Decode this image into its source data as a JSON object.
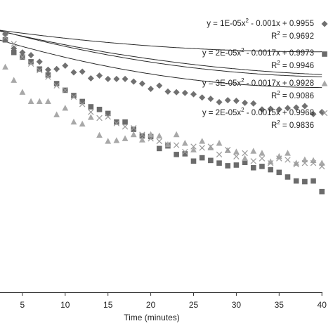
{
  "chart_data": {
    "type": "scatter",
    "xlabel": "Time (minutes)",
    "xlim": [
      2,
      40
    ],
    "ylim": [
      0.6,
      1.02
    ],
    "x_ticks": [
      5,
      10,
      15,
      20,
      25,
      30,
      35,
      40
    ],
    "legend_position": "top-right",
    "series": [
      {
        "equation": "y = 1E-05x",
        "equation_exp": "2",
        "equation_rest": " - 0.001x + 0.9955",
        "r2_label": "R",
        "r2_exp": "2",
        "r2_rest": " = 0.9692",
        "marker": "diamond",
        "color": "#707070",
        "fit": [
          1e-05,
          -0.001,
          0.9955
        ],
        "fit_display": [
          2.4e-05,
          -0.00188,
          0.9999
        ],
        "x": [
          2,
          3,
          4,
          5,
          6,
          7,
          8,
          9,
          10,
          11,
          12,
          13,
          14,
          15,
          16,
          17,
          18,
          19,
          20,
          21,
          22,
          23,
          24,
          25,
          26,
          27,
          28,
          29,
          30,
          31,
          32,
          33,
          34,
          35,
          36,
          37,
          38,
          39,
          40
        ],
        "y": [
          0.992,
          0.99,
          0.968,
          0.962,
          0.958,
          0.948,
          0.936,
          0.937,
          0.942,
          0.932,
          0.933,
          0.923,
          0.927,
          0.922,
          0.922,
          0.922,
          0.918,
          0.915,
          0.907,
          0.912,
          0.903,
          0.902,
          0.901,
          0.899,
          0.894,
          0.892,
          0.887,
          0.89,
          0.889,
          0.886,
          0.885,
          0.876,
          0.877,
          0.876,
          0.878,
          0.879,
          0.881,
          0.869,
          0.872
        ]
      },
      {
        "equation": "y = 2E-05x",
        "equation_exp": "2",
        "equation_rest": " - 0.0017x + 0.9973",
        "r2_label": "R",
        "r2_exp": "2",
        "r2_rest": " = 0.9946",
        "marker": "square",
        "color": "#6b6b6b",
        "fit": [
          2e-05,
          -0.0017,
          0.9973
        ],
        "fit_display": [
          3.25e-05,
          -0.00312,
          1.0015
        ],
        "x": [
          2,
          3,
          4,
          5,
          6,
          7,
          8,
          9,
          10,
          11,
          12,
          13,
          14,
          15,
          16,
          17,
          18,
          19,
          20,
          21,
          22,
          23,
          24,
          25,
          26,
          27,
          28,
          29,
          30,
          31,
          32,
          33,
          34,
          35,
          36,
          37,
          38,
          39,
          40
        ],
        "y": [
          0.985,
          0.981,
          0.962,
          0.955,
          0.948,
          0.937,
          0.928,
          0.915,
          0.905,
          0.897,
          0.888,
          0.88,
          0.876,
          0.87,
          0.857,
          0.857,
          0.846,
          0.836,
          0.835,
          0.817,
          0.821,
          0.808,
          0.809,
          0.798,
          0.803,
          0.799,
          0.795,
          0.791,
          0.792,
          0.796,
          0.788,
          0.79,
          0.785,
          0.781,
          0.774,
          0.768,
          0.767,
          0.768,
          0.752
        ]
      },
      {
        "equation": "y = 3E-05x",
        "equation_exp": "2",
        "equation_rest": " - 0.0017x + 0.9928",
        "r2_label": "R",
        "r2_exp": "2",
        "r2_rest": " = 0.9086",
        "marker": "triangle",
        "color": "#a8a8a8",
        "fit": [
          3e-05,
          -0.0017,
          0.9928
        ],
        "fit_display": [
          5e-05,
          -0.00402,
          0.9899
        ],
        "x": [
          2,
          3,
          4,
          5,
          6,
          7,
          8,
          9,
          10,
          11,
          12,
          13,
          14,
          15,
          16,
          17,
          18,
          19,
          20,
          21,
          22,
          23,
          24,
          25,
          26,
          27,
          28,
          29,
          30,
          31,
          32,
          33,
          34,
          35,
          36,
          37,
          38,
          39,
          40
        ],
        "y": [
          0.958,
          0.94,
          0.92,
          0.902,
          0.888,
          0.888,
          0.888,
          0.868,
          0.878,
          0.857,
          0.854,
          0.864,
          0.837,
          0.828,
          0.829,
          0.832,
          0.838,
          0.83,
          0.838,
          0.836,
          0.823,
          0.838,
          0.825,
          0.815,
          0.828,
          0.818,
          0.825,
          0.814,
          0.812,
          0.802,
          0.813,
          0.81,
          0.797,
          0.805,
          0.81,
          0.795,
          0.8,
          0.799,
          0.795
        ]
      },
      {
        "equation": "y = 2E-05x",
        "equation_exp": "2",
        "equation_rest": " - 0.0015x + 0.9968",
        "r2_label": "R",
        "r2_exp": "2",
        "r2_rest": " = 0.9836",
        "marker": "x",
        "color": "#9a9a9a",
        "fit": [
          2e-05,
          -0.0015,
          0.9968
        ],
        "fit_display": [
          4.2e-05,
          -0.00363,
          1.0033
        ],
        "x": [
          2,
          3,
          4,
          5,
          6,
          7,
          8,
          9,
          10,
          11,
          12,
          13,
          14,
          15,
          16,
          17,
          18,
          19,
          20,
          21,
          22,
          23,
          24,
          25,
          26,
          27,
          28,
          29,
          30,
          31,
          32,
          33,
          34,
          35,
          36,
          37,
          38,
          39,
          40
        ],
        "y": [
          0.995,
          0.985,
          0.975,
          0.955,
          0.945,
          0.935,
          0.925,
          0.912,
          0.905,
          0.895,
          0.884,
          0.872,
          0.863,
          0.865,
          0.855,
          0.85,
          0.848,
          0.838,
          0.832,
          0.828,
          0.823,
          0.822,
          0.812,
          0.82,
          0.818,
          0.82,
          0.808,
          0.815,
          0.805,
          0.81,
          0.798,
          0.802,
          0.795,
          0.802,
          0.8,
          0.793,
          0.795,
          0.795,
          0.79
        ]
      }
    ]
  }
}
